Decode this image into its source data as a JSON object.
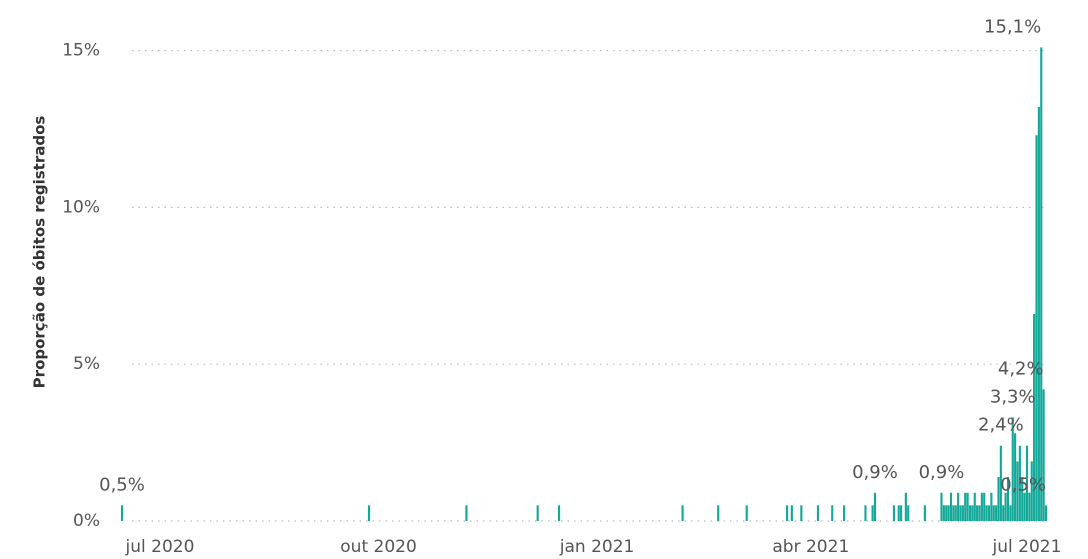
{
  "chart_data": {
    "type": "bar",
    "y_label": "Proporção de óbitos registrados",
    "color": "#14a898",
    "ylim": [
      0,
      15.4
    ],
    "yticks": [
      {
        "value": 0,
        "label": "0%"
      },
      {
        "value": 5,
        "label": "5%"
      },
      {
        "value": 10,
        "label": "10%"
      },
      {
        "value": 15,
        "label": "15%"
      }
    ],
    "grid": true,
    "categories": [
      null,
      null,
      null,
      null,
      null,
      null,
      null,
      null,
      null,
      null,
      null,
      null,
      null,
      null,
      null,
      null,
      "jul 2020",
      null,
      null,
      null,
      null,
      null,
      null,
      null,
      null,
      null,
      null,
      null,
      null,
      null,
      null,
      null,
      null,
      null,
      null,
      null,
      null,
      null,
      null,
      null,
      null,
      null,
      null,
      null,
      null,
      null,
      null,
      null,
      null,
      null,
      null,
      null,
      null,
      null,
      null,
      null,
      null,
      null,
      null,
      null,
      null,
      null,
      null,
      null,
      null,
      null,
      null,
      null,
      null,
      null,
      null,
      null,
      null,
      null,
      null,
      null,
      null,
      null,
      null,
      null,
      null,
      null,
      null,
      null,
      null,
      null,
      null,
      null,
      null,
      null,
      null,
      null,
      null,
      null,
      null,
      null,
      null,
      null,
      null,
      null,
      null,
      null,
      null,
      null,
      null,
      null,
      null,
      null,
      "out 2020",
      null,
      null,
      null,
      null,
      null,
      null,
      null,
      null,
      null,
      null,
      null,
      null,
      null,
      null,
      null,
      null,
      null,
      null,
      null,
      null,
      null,
      null,
      null,
      null,
      null,
      null,
      null,
      null,
      null,
      null,
      null,
      null,
      null,
      null,
      null,
      null,
      null,
      null,
      null,
      null,
      null,
      null,
      null,
      null,
      null,
      null,
      null,
      null,
      null,
      null,
      null,
      null,
      null,
      null,
      null,
      null,
      null,
      null,
      null,
      null,
      null,
      null,
      null,
      null,
      null,
      null,
      null,
      null,
      null,
      null,
      null,
      null,
      null,
      null,
      null,
      null,
      null,
      null,
      null,
      null,
      null,
      null,
      null,
      null,
      null,
      null,
      null,
      null,
      null,
      null,
      null,
      "jan 2021",
      null,
      null,
      null,
      null,
      null,
      null,
      null,
      null,
      null,
      null,
      null,
      null,
      null,
      null,
      null,
      null,
      null,
      null,
      null,
      null,
      null,
      null,
      null,
      null,
      null,
      null,
      null,
      null,
      null,
      null,
      null,
      null,
      null,
      null,
      null,
      null,
      null,
      null,
      null,
      null,
      null,
      null,
      null,
      null,
      null,
      null,
      null,
      null,
      null,
      null,
      null,
      null,
      null,
      null,
      null,
      null,
      null,
      null,
      null,
      null,
      null,
      null,
      null,
      null,
      null,
      null,
      null,
      null,
      null,
      null,
      null,
      null,
      null,
      null,
      null,
      null,
      null,
      null,
      null,
      null,
      null,
      null,
      null,
      null,
      null,
      null,
      null,
      null,
      null,
      "abr 2021",
      null,
      null,
      null,
      null,
      null,
      null,
      null,
      null,
      null,
      null,
      null,
      null,
      null,
      null,
      null,
      null,
      null,
      null,
      null,
      null,
      null,
      null,
      null,
      null,
      null,
      null,
      null,
      null,
      null,
      null,
      null,
      null,
      null,
      null,
      null,
      null,
      null,
      null,
      null,
      null,
      null,
      null,
      null,
      null,
      null,
      null,
      null,
      null,
      null,
      null,
      null,
      null,
      null,
      null,
      null,
      null,
      null,
      null,
      null,
      null,
      null,
      null,
      null,
      null,
      null,
      null,
      null,
      null,
      null,
      null,
      null,
      null,
      null,
      null,
      null,
      null,
      null,
      null,
      null,
      null,
      null,
      null,
      null,
      null,
      null,
      null,
      null,
      null,
      null,
      null,
      "jul 2021",
      null,
      null,
      null,
      null,
      null,
      null,
      null,
      null
    ],
    "values": [
      0.5,
      0,
      0,
      0,
      0,
      0,
      0,
      0,
      0,
      0,
      0,
      0,
      0,
      0,
      0,
      0,
      0,
      0,
      0,
      0,
      0,
      0,
      0,
      0,
      0,
      0,
      0,
      0,
      0,
      0,
      0,
      0,
      0,
      0,
      0,
      0,
      0,
      0,
      0,
      0,
      0,
      0,
      0,
      0,
      0,
      0,
      0,
      0,
      0,
      0,
      0,
      0,
      0,
      0,
      0,
      0,
      0,
      0,
      0,
      0,
      0,
      0,
      0,
      0,
      0,
      0,
      0,
      0,
      0,
      0,
      0,
      0,
      0,
      0,
      0,
      0,
      0,
      0,
      0,
      0,
      0,
      0,
      0,
      0,
      0,
      0,
      0,
      0,
      0,
      0,
      0,
      0,
      0,
      0,
      0,
      0,
      0,
      0,
      0,
      0,
      0,
      0,
      0,
      0,
      0.5,
      0,
      0,
      0,
      0,
      0,
      0,
      0,
      0,
      0,
      0,
      0,
      0,
      0,
      0,
      0,
      0,
      0,
      0,
      0,
      0,
      0,
      0,
      0,
      0,
      0,
      0,
      0,
      0,
      0,
      0,
      0,
      0,
      0,
      0,
      0,
      0,
      0,
      0,
      0,
      0,
      0.5,
      0,
      0,
      0,
      0,
      0,
      0,
      0,
      0,
      0,
      0,
      0,
      0,
      0,
      0,
      0,
      0,
      0,
      0,
      0,
      0,
      0,
      0,
      0,
      0,
      0,
      0,
      0,
      0,
      0,
      0.5,
      0,
      0,
      0,
      0,
      0,
      0,
      0,
      0,
      0.5,
      0,
      0,
      0,
      0,
      0,
      0,
      0,
      0,
      0,
      0,
      0,
      0,
      0,
      0,
      0,
      0,
      0,
      0,
      0,
      0,
      0,
      0,
      0,
      0,
      0,
      0,
      0,
      0,
      0,
      0,
      0,
      0,
      0,
      0,
      0,
      0,
      0,
      0,
      0,
      0,
      0,
      0,
      0,
      0,
      0,
      0,
      0,
      0,
      0,
      0,
      0,
      0.5,
      0,
      0,
      0,
      0,
      0,
      0,
      0,
      0,
      0,
      0,
      0,
      0,
      0,
      0,
      0.5,
      0,
      0,
      0,
      0,
      0,
      0,
      0,
      0,
      0,
      0,
      0,
      0.5,
      0,
      0,
      0,
      0,
      0,
      0,
      0,
      0,
      0,
      0,
      0,
      0,
      0,
      0,
      0,
      0,
      0.5,
      0,
      0.5,
      0,
      0,
      0,
      0.5,
      0,
      0,
      0,
      0,
      0,
      0,
      0.5,
      0,
      0,
      0,
      0,
      0,
      0.5,
      0,
      0,
      0,
      0,
      0.5,
      0,
      0,
      0,
      0,
      0,
      0,
      0,
      0,
      0.5,
      0,
      0,
      0.5,
      0.9,
      0,
      0,
      0,
      0,
      0,
      0,
      0,
      0.5,
      0,
      0.5,
      0.5,
      0,
      0.9,
      0.5,
      0,
      0,
      0,
      0,
      0,
      0,
      0.5,
      0,
      0,
      0,
      0,
      0,
      0,
      0.9,
      0.5,
      0.5,
      0.5,
      0.9,
      0.5,
      0.5,
      0.9,
      0.5,
      0.5,
      0.9,
      0.9,
      0.5,
      0.5,
      0.9,
      0.5,
      0.5,
      0.9,
      0.9,
      0.5,
      0.5,
      0.9,
      0.5,
      0.5,
      1.4,
      2.4,
      0.5,
      0.9,
      1.4,
      0.5,
      3.3,
      2.8,
      1.9,
      2.4,
      1.4,
      0.9,
      2.4,
      0.9,
      1.9,
      6.6,
      12.3,
      13.2,
      15.1,
      4.2,
      0.5
    ],
    "value_labels": [
      "0,5%",
      null,
      null,
      null,
      null,
      null,
      null,
      null,
      null,
      null,
      null,
      null,
      null,
      null,
      null,
      null,
      null,
      null,
      null,
      null,
      null,
      null,
      null,
      null,
      null,
      null,
      null,
      null,
      null,
      null,
      null,
      null,
      null,
      null,
      null,
      null,
      null,
      null,
      null,
      null,
      null,
      null,
      null,
      null,
      null,
      null,
      null,
      null,
      null,
      null,
      null,
      null,
      null,
      null,
      null,
      null,
      null,
      null,
      null,
      null,
      null,
      null,
      null,
      null,
      null,
      null,
      null,
      null,
      null,
      null,
      null,
      null,
      null,
      null,
      null,
      null,
      null,
      null,
      null,
      null,
      null,
      null,
      null,
      null,
      null,
      null,
      null,
      null,
      null,
      null,
      null,
      null,
      null,
      null,
      null,
      null,
      null,
      null,
      null,
      null,
      null,
      null,
      null,
      null,
      null,
      null,
      null,
      null,
      null,
      null,
      null,
      null,
      null,
      null,
      null,
      null,
      null,
      null,
      null,
      null,
      null,
      null,
      null,
      null,
      null,
      null,
      null,
      null,
      null,
      null,
      null,
      null,
      null,
      null,
      null,
      null,
      null,
      null,
      null,
      null,
      null,
      null,
      null,
      null,
      null,
      null,
      null,
      null,
      null,
      null,
      null,
      null,
      null,
      null,
      null,
      null,
      null,
      null,
      null,
      null,
      null,
      null,
      null,
      null,
      null,
      null,
      null,
      null,
      null,
      null,
      null,
      null,
      null,
      null,
      null,
      null,
      null,
      null,
      null,
      null,
      null,
      null,
      null,
      null,
      null,
      null,
      null,
      null,
      null,
      null,
      null,
      null,
      null,
      null,
      null,
      null,
      null,
      null,
      null,
      null,
      null,
      null,
      null,
      null,
      null,
      null,
      null,
      null,
      null,
      null,
      null,
      null,
      null,
      null,
      null,
      null,
      null,
      null,
      null,
      null,
      null,
      null,
      null,
      null,
      null,
      null,
      null,
      null,
      null,
      null,
      null,
      null,
      null,
      null,
      null,
      null,
      null,
      null,
      null,
      null,
      null,
      null,
      null,
      null,
      null,
      null,
      null,
      null,
      null,
      null,
      null,
      null,
      null,
      null,
      null,
      null,
      null,
      null,
      null,
      null,
      null,
      null,
      null,
      null,
      null,
      null,
      null,
      null,
      null,
      null,
      null,
      null,
      null,
      null,
      null,
      null,
      null,
      null,
      null,
      null,
      null,
      null,
      null,
      null,
      null,
      null,
      null,
      null,
      null,
      null,
      null,
      null,
      null,
      null,
      null,
      null,
      null,
      null,
      null,
      null,
      null,
      null,
      null,
      null,
      null,
      null,
      null,
      null,
      null,
      null,
      null,
      null,
      null,
      null,
      null,
      null,
      null,
      "0,9%",
      null,
      null,
      null,
      null,
      null,
      null,
      null,
      null,
      null,
      null,
      null,
      null,
      null,
      null,
      null,
      null,
      null,
      null,
      null,
      null,
      null,
      null,
      null,
      null,
      null,
      null,
      null,
      "0,9%",
      null,
      null,
      null,
      null,
      null,
      null,
      null,
      null,
      null,
      null,
      null,
      null,
      null,
      null,
      null,
      null,
      null,
      null,
      null,
      null,
      null,
      null,
      null,
      null,
      "2,4%",
      null,
      null,
      null,
      null,
      "3,3%",
      null,
      null,
      null,
      null,
      null,
      null,
      null,
      null,
      null,
      null,
      null,
      "15,1%",
      "4,2%",
      "0,5%"
    ]
  }
}
